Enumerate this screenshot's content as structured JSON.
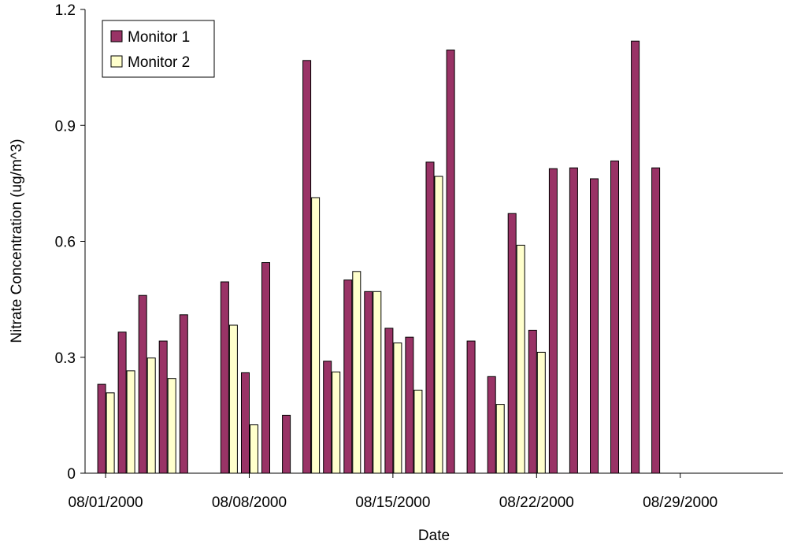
{
  "chart_data": {
    "type": "bar",
    "xlabel": "Date",
    "ylabel": "Nitrate Concentration (ug/m^3)",
    "ylim": [
      0,
      1.2
    ],
    "y_ticks": [
      "0",
      "0.3",
      "0.6",
      "0.9",
      "1.2"
    ],
    "x_range": [
      "07/31/2000",
      "09/03/2000"
    ],
    "x_tick_labels": [
      "08/01/2000",
      "08/08/2000",
      "08/15/2000",
      "08/22/2000",
      "08/29/2000"
    ],
    "legend_position": "top-left",
    "series": [
      {
        "name": "Monitor 1",
        "color": "#993366",
        "points": [
          [
            "08/01/2000",
            0.23
          ],
          [
            "08/02/2000",
            0.365
          ],
          [
            "08/03/2000",
            0.46
          ],
          [
            "08/04/2000",
            0.342
          ],
          [
            "08/05/2000",
            0.41
          ],
          [
            "08/07/2000",
            0.495
          ],
          [
            "08/08/2000",
            0.26
          ],
          [
            "08/09/2000",
            0.545
          ],
          [
            "08/10/2000",
            0.15
          ],
          [
            "08/11/2000",
            1.068
          ],
          [
            "08/12/2000",
            0.29
          ],
          [
            "08/13/2000",
            0.5
          ],
          [
            "08/14/2000",
            0.47
          ],
          [
            "08/15/2000",
            0.375
          ],
          [
            "08/16/2000",
            0.352
          ],
          [
            "08/17/2000",
            0.805
          ],
          [
            "08/18/2000",
            1.095
          ],
          [
            "08/19/2000",
            0.342
          ],
          [
            "08/20/2000",
            0.25
          ],
          [
            "08/21/2000",
            0.672
          ],
          [
            "08/22/2000",
            0.37
          ],
          [
            "08/23/2000",
            0.788
          ],
          [
            "08/24/2000",
            0.79
          ],
          [
            "08/25/2000",
            0.762
          ],
          [
            "08/26/2000",
            0.808
          ],
          [
            "08/27/2000",
            1.118
          ],
          [
            "08/28/2000",
            0.79
          ]
        ]
      },
      {
        "name": "Monitor 2",
        "color": "#ffffcc",
        "points": [
          [
            "08/01/2000",
            0.208
          ],
          [
            "08/02/2000",
            0.265
          ],
          [
            "08/03/2000",
            0.298
          ],
          [
            "08/04/2000",
            0.245
          ],
          [
            "08/07/2000",
            0.383
          ],
          [
            "08/08/2000",
            0.125
          ],
          [
            "08/11/2000",
            0.713
          ],
          [
            "08/12/2000",
            0.262
          ],
          [
            "08/13/2000",
            0.522
          ],
          [
            "08/14/2000",
            0.47
          ],
          [
            "08/15/2000",
            0.337
          ],
          [
            "08/16/2000",
            0.215
          ],
          [
            "08/17/2000",
            0.768
          ],
          [
            "08/20/2000",
            0.178
          ],
          [
            "08/21/2000",
            0.59
          ],
          [
            "08/22/2000",
            0.313
          ]
        ]
      }
    ]
  }
}
